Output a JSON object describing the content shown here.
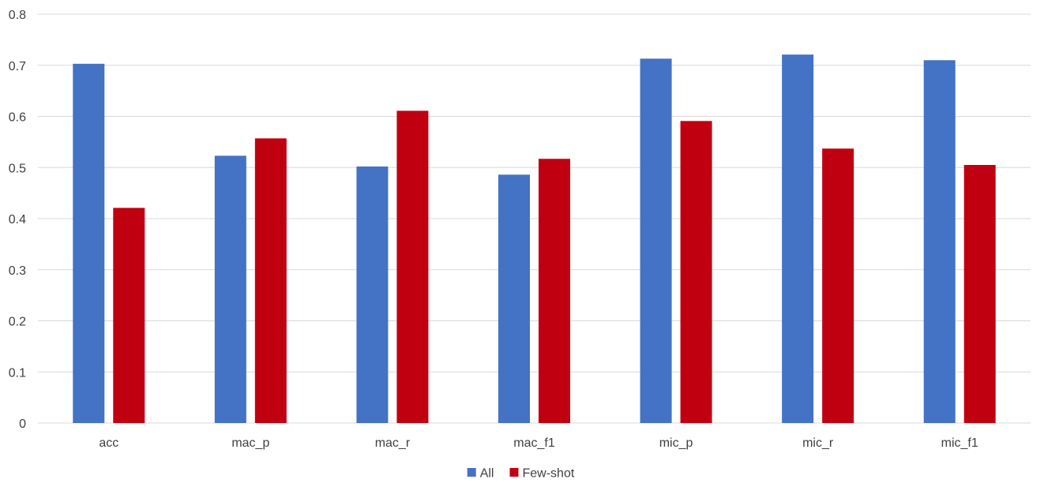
{
  "chart_data": {
    "type": "bar",
    "title": "",
    "xlabel": "",
    "ylabel": "",
    "ylim": [
      0,
      0.8
    ],
    "yticks": [
      "0",
      "0.1",
      "0.2",
      "0.3",
      "0.4",
      "0.5",
      "0.6",
      "0.7",
      "0.8"
    ],
    "grid": true,
    "legend_position": "bottom",
    "categories": [
      "acc",
      "mac_p",
      "mac_r",
      "mac_f1",
      "mic_p",
      "mic_r",
      "mic_f1"
    ],
    "series": [
      {
        "name": "All",
        "color": "#4472c4",
        "values": [
          0.703,
          0.523,
          0.502,
          0.486,
          0.713,
          0.721,
          0.71
        ]
      },
      {
        "name": "Few-shot",
        "color": "#c00010",
        "values": [
          0.421,
          0.557,
          0.611,
          0.517,
          0.591,
          0.537,
          0.505
        ]
      }
    ]
  }
}
